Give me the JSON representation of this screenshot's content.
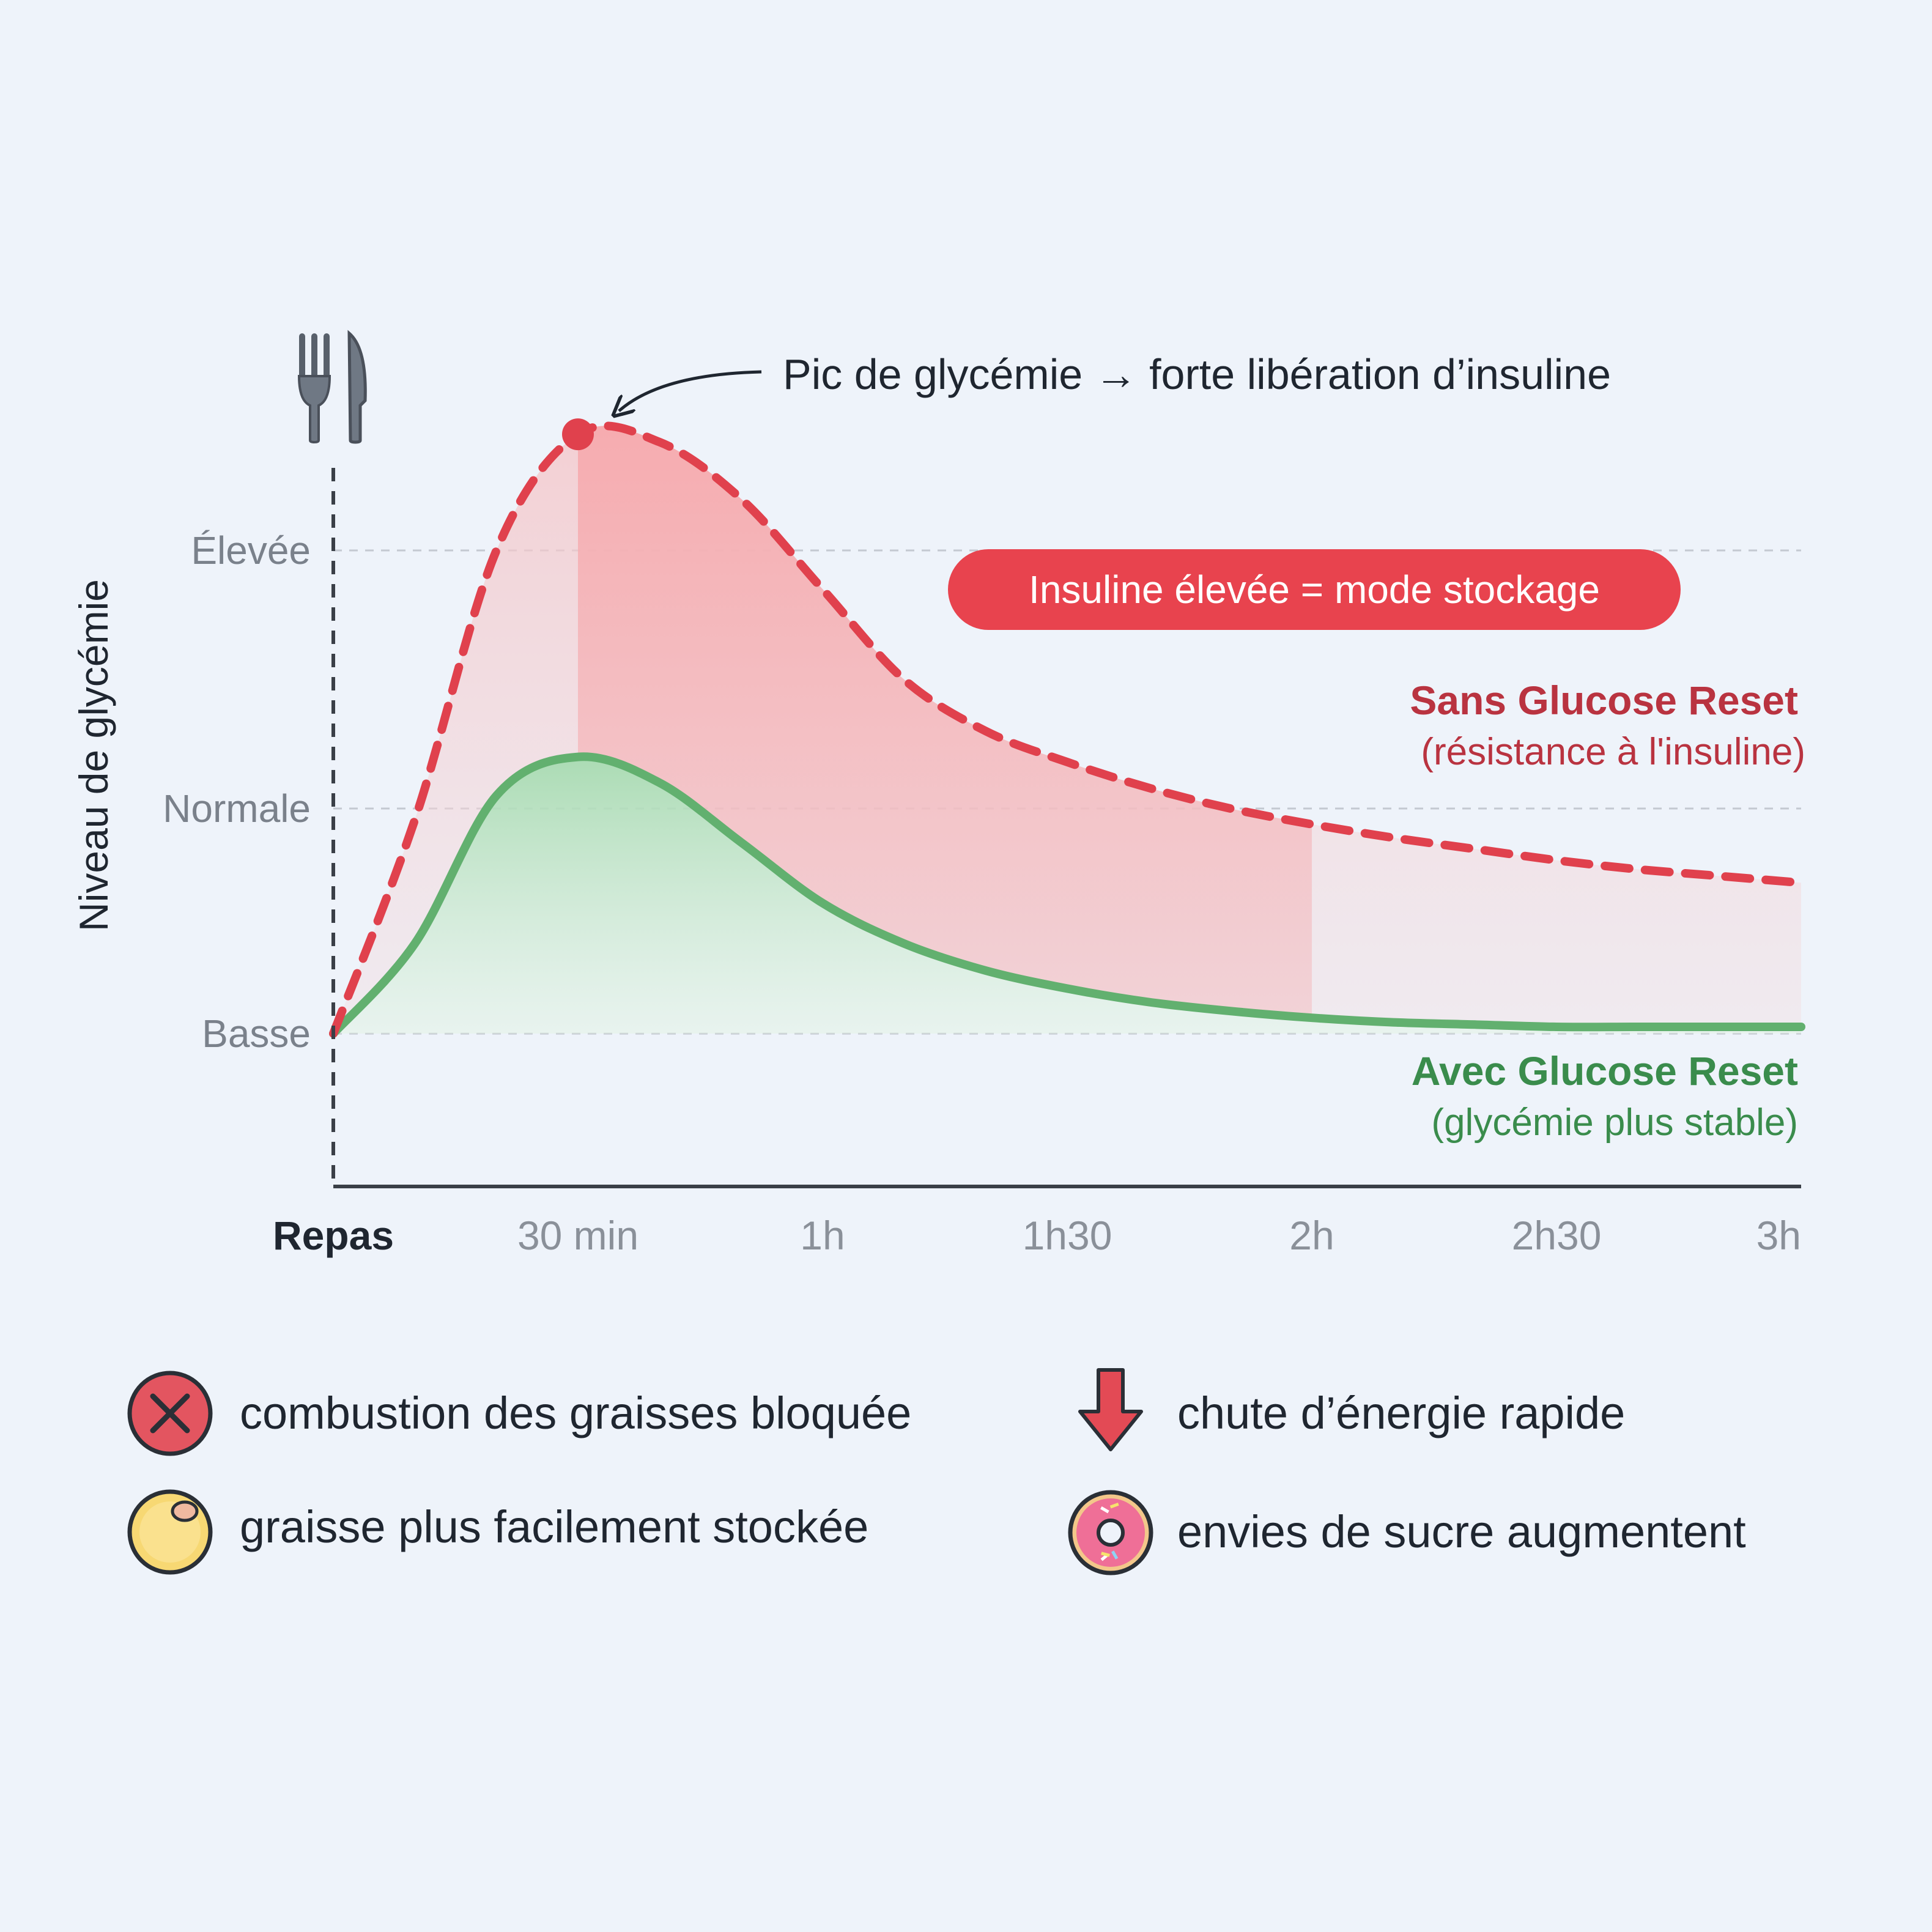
{
  "colors": {
    "background": "#eef3fa",
    "red_series": "#e0414d",
    "red_fill": "#f29a9e",
    "green_series": "#62b06f",
    "green_fill": "#bfe3c4",
    "badge": "#e8434e",
    "axis": "#3a3f47",
    "grid": "#c4c9d1"
  },
  "chart_data": {
    "type": "area",
    "ylabel": "Niveau de glycémie",
    "xlabel": "",
    "x_ticks": [
      "Repas",
      "30 min",
      "1h",
      "1h30",
      "2h",
      "2h30",
      "3h"
    ],
    "x_minutes": [
      0,
      30,
      60,
      90,
      120,
      150,
      180
    ],
    "y_ticks": [
      "Basse",
      "Normale",
      "Élevée"
    ],
    "y_tick_values": [
      1,
      2,
      3
    ],
    "ylim": [
      0.4,
      3.6
    ],
    "xlim": [
      0,
      180
    ],
    "grid": "horizontal dashed at y ticks",
    "x": [
      0,
      10,
      20,
      30,
      40,
      50,
      60,
      70,
      80,
      90,
      100,
      110,
      120,
      130,
      140,
      150,
      160,
      170,
      180
    ],
    "series": [
      {
        "name": "Sans Glucose Reset",
        "note": "(résistance à l'insuline)",
        "style": "dashed",
        "color": "#e0414d",
        "values": [
          1.0,
          1.95,
          3.0,
          3.45,
          3.42,
          3.2,
          2.85,
          2.5,
          2.3,
          2.18,
          2.08,
          2.0,
          1.93,
          1.87,
          1.82,
          1.77,
          1.73,
          1.7,
          1.67
        ]
      },
      {
        "name": "Avec Glucose Reset",
        "note": "(glycémie plus stable)",
        "style": "solid",
        "color": "#62b06f",
        "values": [
          1.0,
          1.4,
          2.05,
          2.2,
          2.1,
          1.85,
          1.58,
          1.4,
          1.28,
          1.2,
          1.14,
          1.1,
          1.07,
          1.05,
          1.04,
          1.03,
          1.03,
          1.03,
          1.03
        ]
      }
    ],
    "highlight_region_minutes": [
      30,
      120
    ],
    "annotations": {
      "peak": {
        "text": "Pic de glycémie → forte libération d’insuline",
        "x": 30,
        "y": 3.45
      },
      "badge": {
        "text": "Insuline élevée = mode stockage"
      }
    },
    "legend_placement": "right, next to line ends"
  },
  "legend_items": [
    {
      "icon": "cross-circle-icon",
      "label": "combustion des graisses bloquée"
    },
    {
      "icon": "down-arrow-icon",
      "label": "chute d’énergie rapide"
    },
    {
      "icon": "fat-cell-icon",
      "label": "graisse plus facilement stockée"
    },
    {
      "icon": "donut-icon",
      "label": "envies de sucre augmentent"
    }
  ],
  "header_icon": "fork-knife-icon"
}
